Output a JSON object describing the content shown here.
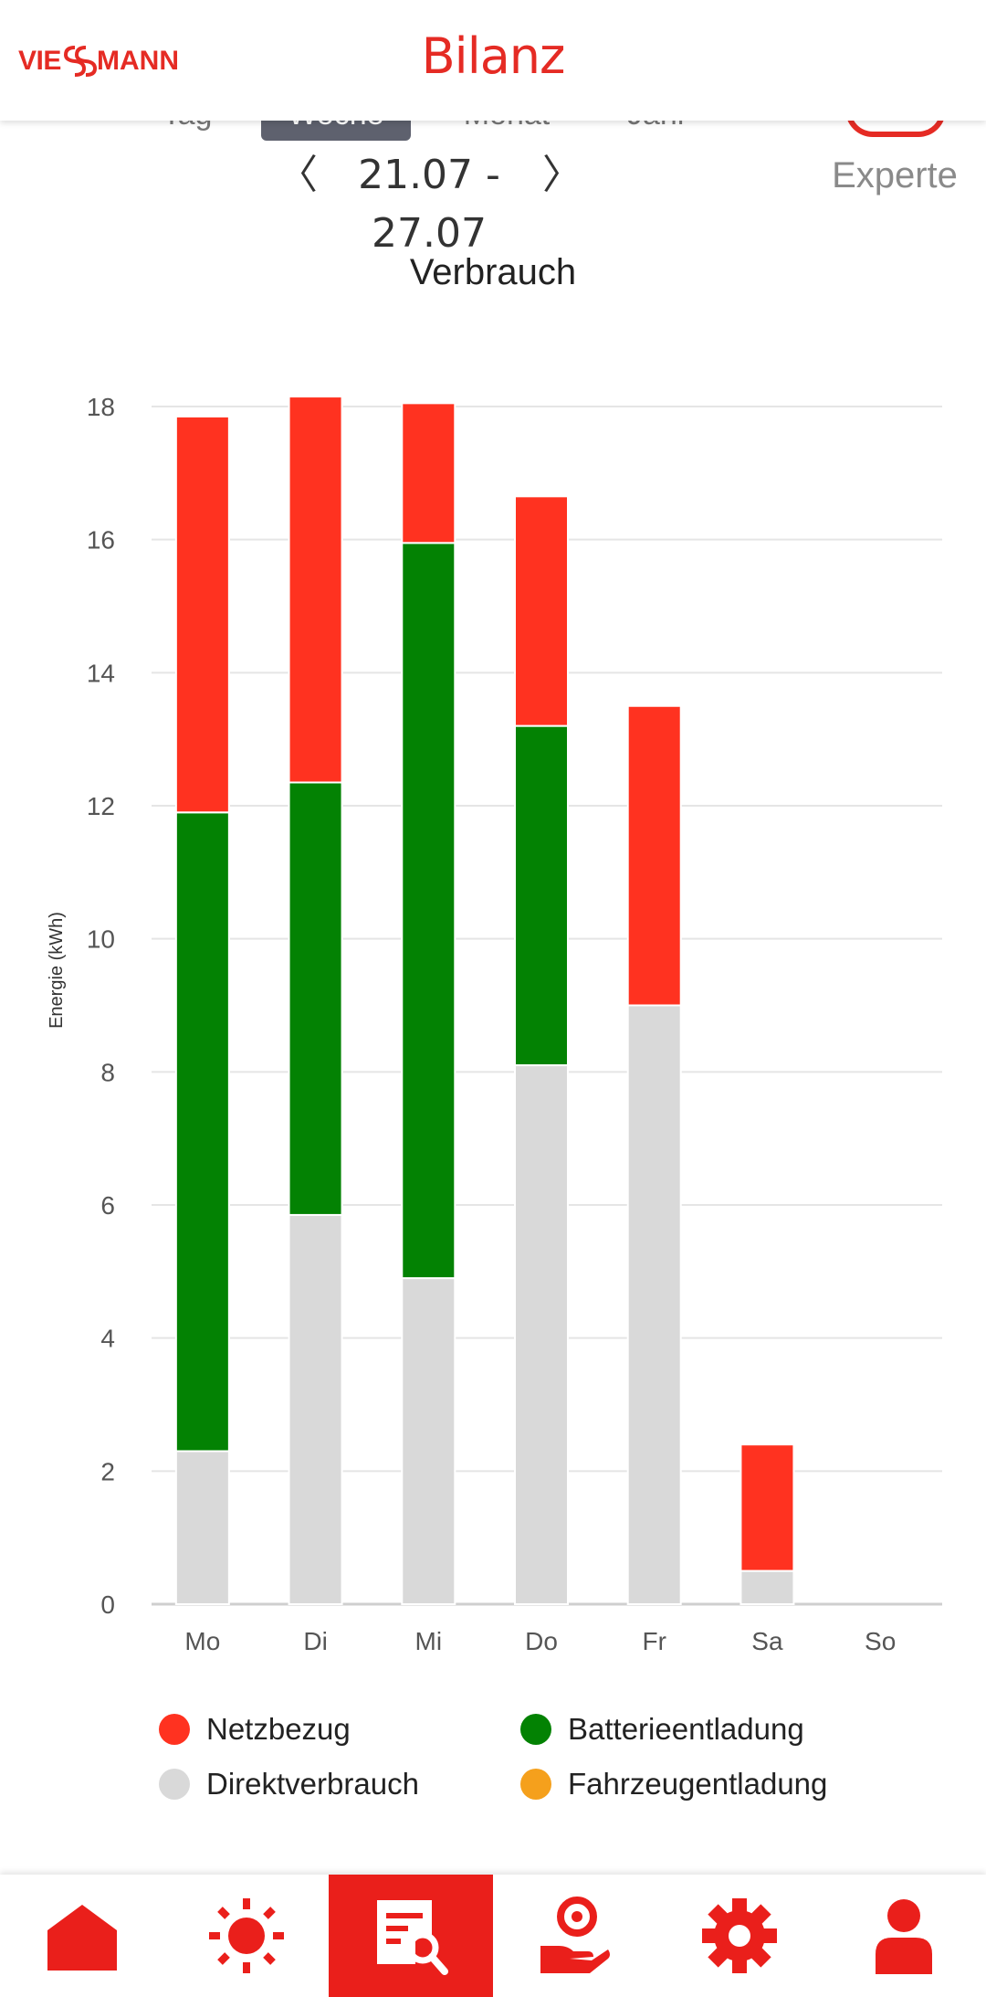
{
  "header": {
    "title": "Bilanz",
    "logo_text": "VIESSMANN"
  },
  "period_tabs": [
    {
      "label": "Tag",
      "active": false
    },
    {
      "label": "Woche",
      "active": true
    },
    {
      "label": "Monat",
      "active": false
    },
    {
      "label": "Jahr",
      "active": false
    }
  ],
  "range": {
    "prev_label": "〈",
    "text": "21.07 - 27.07",
    "next_label": "〉"
  },
  "expert": {
    "label": "Experte",
    "enabled": true
  },
  "colors": {
    "accent": "#e52b24",
    "netzbezug": "#ff3220",
    "batterieentladung": "#038203",
    "direktverbrauch": "#d9d9d9",
    "fahrzeugentladung": "#f5a01c",
    "grid": "#e5e5e5"
  },
  "chart_data": {
    "type": "bar",
    "stacked": true,
    "title": "Verbrauch",
    "ylabel": "Energie (kWh)",
    "xlabel": "",
    "ylim": [
      0,
      18
    ],
    "yticks": [
      0,
      2,
      4,
      6,
      8,
      10,
      12,
      14,
      16,
      18
    ],
    "grid": true,
    "legend_position": "bottom",
    "categories": [
      "Mo",
      "Di",
      "Mi",
      "Do",
      "Fr",
      "Sa",
      "So"
    ],
    "series": [
      {
        "name": "Direktverbrauch",
        "color_key": "direktverbrauch",
        "values": [
          2.3,
          5.85,
          4.9,
          8.1,
          9.0,
          0.5,
          0
        ]
      },
      {
        "name": "Batterieentladung",
        "color_key": "batterieentladung",
        "values": [
          9.6,
          6.5,
          11.05,
          5.1,
          0,
          0,
          0
        ]
      },
      {
        "name": "Netzbezug",
        "color_key": "netzbezug",
        "values": [
          5.95,
          5.8,
          2.1,
          3.45,
          4.5,
          1.9,
          0
        ]
      },
      {
        "name": "Fahrzeugentladung",
        "color_key": "fahrzeugentladung",
        "values": [
          0,
          0,
          0,
          0,
          0,
          0,
          0
        ]
      }
    ]
  },
  "legend": [
    {
      "label": "Netzbezug",
      "color": "#ff3220"
    },
    {
      "label": "Batterieentladung",
      "color": "#038203"
    },
    {
      "label": "Direktverbrauch",
      "color": "#d9d9d9"
    },
    {
      "label": "Fahrzeugentladung",
      "color": "#f5a01c"
    }
  ],
  "bottom_nav": [
    {
      "icon": "home-icon",
      "active": false
    },
    {
      "icon": "sun-icon",
      "active": false
    },
    {
      "icon": "report-search-icon",
      "active": true
    },
    {
      "icon": "hand-coin-icon",
      "active": false
    },
    {
      "icon": "gear-icon",
      "active": false
    },
    {
      "icon": "user-icon",
      "active": false
    }
  ]
}
